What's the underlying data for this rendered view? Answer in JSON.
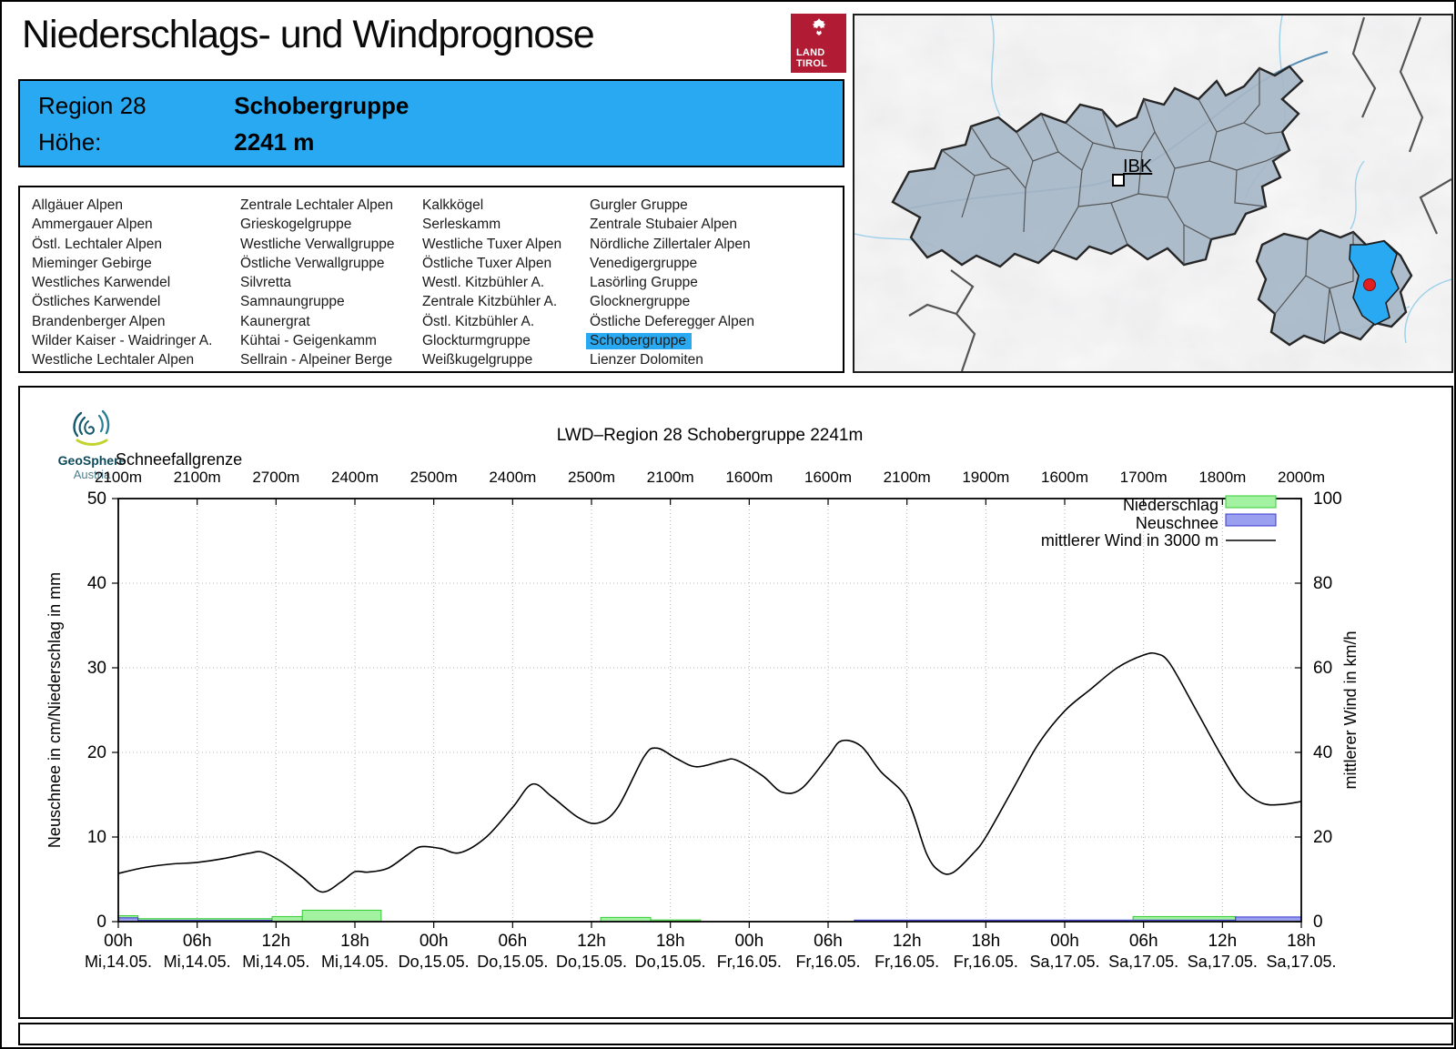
{
  "header": {
    "title": "Niederschlags- und Windprognose",
    "logo": {
      "line1": "LAND",
      "line2": "TIROL"
    }
  },
  "region_info": {
    "region_label": "Region 28",
    "region_name": "Schobergruppe",
    "altitude_label": "Höhe:",
    "altitude_value": "2241 m"
  },
  "region_list": {
    "highlighted": "Schobergruppe",
    "columns": [
      [
        "Allgäuer Alpen",
        "Ammergauer Alpen",
        "Östl. Lechtaler Alpen",
        "Mieminger Gebirge",
        "Westliches Karwendel",
        "Östliches Karwendel",
        "Brandenberger Alpen",
        "Wilder Kaiser - Waidringer A.",
        "Westliche Lechtaler Alpen"
      ],
      [
        "Zentrale Lechtaler Alpen",
        "Grieskogelgruppe",
        "Westliche Verwallgruppe",
        "Östliche Verwallgruppe",
        "Silvretta",
        "Samnaungruppe",
        "Kaunergrat",
        "Kühtai - Geigenkamm",
        "Sellrain - Alpeiner Berge"
      ],
      [
        "Kalkkögel",
        "Serleskamm",
        "Westliche Tuxer Alpen",
        "Östliche Tuxer Alpen",
        "Westl. Kitzbühler A.",
        "Zentrale Kitzbühler A.",
        "Östl. Kitzbühler A.",
        "Glockturmgruppe",
        "Weißkugelgruppe"
      ],
      [
        "Gurgler Gruppe",
        "Zentrale Stubaier Alpen",
        "Nördliche Zillertaler Alpen",
        "Venedigergruppe",
        "Lasörling Gruppe",
        "Glocknergruppe",
        "Östliche Deferegger Alpen",
        "Schobergruppe",
        "Lienzer Dolomiten"
      ]
    ]
  },
  "map": {
    "city_label": "IBK",
    "highlight_color": "#29a9f1",
    "marker_color": "#e02020"
  },
  "branding": {
    "geosphere_line1": "GeoSphere",
    "geosphere_line2": "Austria"
  },
  "chart_data": {
    "type": "composite",
    "title": "LWD–Region 28 Schobergruppe 2241m",
    "top_axis": {
      "label": "Schneefallgrenze",
      "values": [
        "2100m",
        "2100m",
        "2700m",
        "2400m",
        "2500m",
        "2400m",
        "2500m",
        "2100m",
        "1600m",
        "1600m",
        "2100m",
        "1900m",
        "1600m",
        "1700m",
        "1800m",
        "2000m"
      ]
    },
    "x_axis": {
      "range_hours": [
        0,
        90
      ],
      "tick_every_hours": 6,
      "tick_times": [
        "00h",
        "06h",
        "12h",
        "18h",
        "00h",
        "06h",
        "12h",
        "18h",
        "00h",
        "06h",
        "12h",
        "18h",
        "00h",
        "06h",
        "12h",
        "18h"
      ],
      "tick_dates": [
        "Mi,14.05.",
        "Mi,14.05.",
        "Mi,14.05.",
        "Mi,14.05.",
        "Do,15.05.",
        "Do,15.05.",
        "Do,15.05.",
        "Do,15.05.",
        "Fr,16.05.",
        "Fr,16.05.",
        "Fr,16.05.",
        "Fr,16.05.",
        "Sa,17.05.",
        "Sa,17.05.",
        "Sa,17.05.",
        "Sa,17.05."
      ]
    },
    "y_left": {
      "label": "Neuschnee in cm/Niederschlag in mm",
      "range": [
        0,
        50
      ],
      "ticks": [
        0,
        10,
        20,
        30,
        40,
        50
      ]
    },
    "y_right": {
      "label": "mittlerer Wind in km/h",
      "range": [
        0,
        100
      ],
      "ticks": [
        0,
        20,
        40,
        60,
        80,
        100
      ]
    },
    "grid": {
      "h_lines_left_units": [
        10,
        20,
        30,
        40
      ],
      "style": "dotted"
    },
    "legend": [
      {
        "series": "niederschlag",
        "label": "Niederschlag"
      },
      {
        "series": "neuschnee",
        "label": "Neuschnee"
      },
      {
        "series": "wind",
        "label": "mittlerer Wind in 3000 m"
      }
    ],
    "series": {
      "niederschlag": {
        "name": "Niederschlag",
        "unit": "mm",
        "axis": "left",
        "fill": "#a2f2a2",
        "edge": "#33cc33",
        "bars": [
          [
            0,
            1.5,
            0.7
          ],
          [
            1.5,
            11.7,
            0.35
          ],
          [
            11.7,
            14,
            0.6
          ],
          [
            14,
            20,
            1.35
          ],
          [
            36.7,
            40.5,
            0.5
          ],
          [
            40.5,
            44.3,
            0.2
          ],
          [
            77.2,
            85,
            0.6
          ]
        ]
      },
      "neuschnee": {
        "name": "Neuschnee",
        "unit": "cm",
        "axis": "left",
        "fill": "#9b9fef",
        "edge": "#3434cc",
        "bars": [
          [
            0,
            1.5,
            0.45
          ],
          [
            1.5,
            11.7,
            0.15
          ],
          [
            56,
            90,
            0.18
          ],
          [
            85,
            90,
            0.55
          ]
        ]
      },
      "wind": {
        "name": "mittlerer Wind in 3000 m",
        "unit": "km/h",
        "axis": "right",
        "color": "#000000",
        "points": [
          [
            0,
            11.4
          ],
          [
            2,
            12.8
          ],
          [
            4,
            13.6
          ],
          [
            6,
            14
          ],
          [
            8,
            14.9
          ],
          [
            10,
            16.2
          ],
          [
            11,
            16.4
          ],
          [
            12.5,
            14
          ],
          [
            14,
            10.5
          ],
          [
            15.5,
            7
          ],
          [
            17,
            9.5
          ],
          [
            18,
            11.8
          ],
          [
            19,
            11.7
          ],
          [
            20.5,
            12.6
          ],
          [
            22,
            15.8
          ],
          [
            23,
            17.7
          ],
          [
            24.5,
            17.3
          ],
          [
            26,
            16.3
          ],
          [
            28,
            20
          ],
          [
            30,
            27
          ],
          [
            31.5,
            32.5
          ],
          [
            33,
            29.5
          ],
          [
            35,
            24.6
          ],
          [
            36.5,
            23.3
          ],
          [
            38,
            27
          ],
          [
            40,
            39
          ],
          [
            41,
            41
          ],
          [
            42.5,
            38.5
          ],
          [
            44,
            36.6
          ],
          [
            46,
            38
          ],
          [
            47,
            38.2
          ],
          [
            49,
            34.5
          ],
          [
            50.5,
            30.6
          ],
          [
            52,
            31.5
          ],
          [
            54,
            39
          ],
          [
            55,
            42.7
          ],
          [
            56.5,
            41.5
          ],
          [
            58,
            35.5
          ],
          [
            60,
            29
          ],
          [
            61.5,
            16
          ],
          [
            62.5,
            11.9
          ],
          [
            63.5,
            11.6
          ],
          [
            65,
            16
          ],
          [
            66,
            20
          ],
          [
            68,
            31
          ],
          [
            70,
            42
          ],
          [
            72,
            49.8
          ],
          [
            74,
            55
          ],
          [
            76,
            60
          ],
          [
            78,
            63
          ],
          [
            79,
            63.3
          ],
          [
            80,
            61
          ],
          [
            82,
            50
          ],
          [
            84,
            38.8
          ],
          [
            85.5,
            31.5
          ],
          [
            87,
            28
          ],
          [
            88.5,
            27.7
          ],
          [
            90,
            28.4
          ]
        ]
      }
    }
  }
}
